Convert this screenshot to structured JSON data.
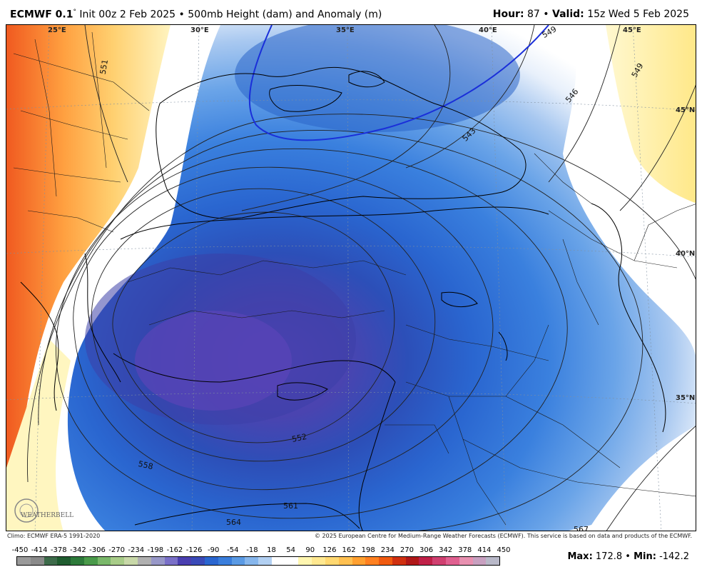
{
  "header": {
    "model": "ECMWF 0.1",
    "degree": "°",
    "init": "Init 00z 2 Feb 2025",
    "bullet": "•",
    "field": "500mb Height (dam) and Anomaly (m)",
    "hour_label": "Hour:",
    "hour_value": "87",
    "valid_label": "Valid:",
    "valid_value": "15z Wed 5 Feb 2025"
  },
  "map": {
    "lon_labels": [
      "25°E",
      "30°E",
      "35°E",
      "40°E",
      "45°E"
    ],
    "lat_labels": [
      "45°N",
      "40°N",
      "35°N"
    ],
    "contour_labels": [
      "551",
      "552",
      "558",
      "561",
      "564",
      "543",
      "546",
      "549",
      "549",
      "567",
      "567"
    ],
    "blue_contour_color": "#1a2fd9",
    "logo": "WEATHERBELL"
  },
  "credits": {
    "climo": "Climo: ECMWF ERA-5 1991-2020",
    "copyright": "© 2025 European Centre for Medium-Range Weather Forecasts (ECMWF). This service is based on data and products of the ECMWF."
  },
  "colorbar": {
    "ticks": [
      "-450",
      "-414",
      "-378",
      "-342",
      "-306",
      "-270",
      "-234",
      "-198",
      "-162",
      "-126",
      "-90",
      "-54",
      "-18",
      "18",
      "54",
      "90",
      "126",
      "162",
      "198",
      "234",
      "270",
      "306",
      "342",
      "378",
      "414",
      "450"
    ],
    "colors": [
      "#9a9a9a",
      "#8a8a8a",
      "#3d6b4a",
      "#1f5c2f",
      "#2d7a3a",
      "#4a9a4a",
      "#7ab86a",
      "#a8cc88",
      "#c8d8a8",
      "#b0b0b0",
      "#9898c8",
      "#7a70c8",
      "#4a3fb0",
      "#3a4ab8",
      "#2a66d0",
      "#3a7edc",
      "#5a9ae4",
      "#86b6ec",
      "#b2d0f2",
      "#ffffff",
      "#ffffff",
      "#fff6b0",
      "#ffe890",
      "#ffd870",
      "#ffc050",
      "#ffa030",
      "#ff8020",
      "#f05a10",
      "#d03010",
      "#b01818",
      "#c02048",
      "#d04070",
      "#e06090",
      "#e890b0",
      "#c8a0c0",
      "#b8b8c8"
    ]
  },
  "stats": {
    "max_label": "Max:",
    "max_value": "172.8",
    "min_label": "Min:",
    "min_value": "-142.2"
  }
}
